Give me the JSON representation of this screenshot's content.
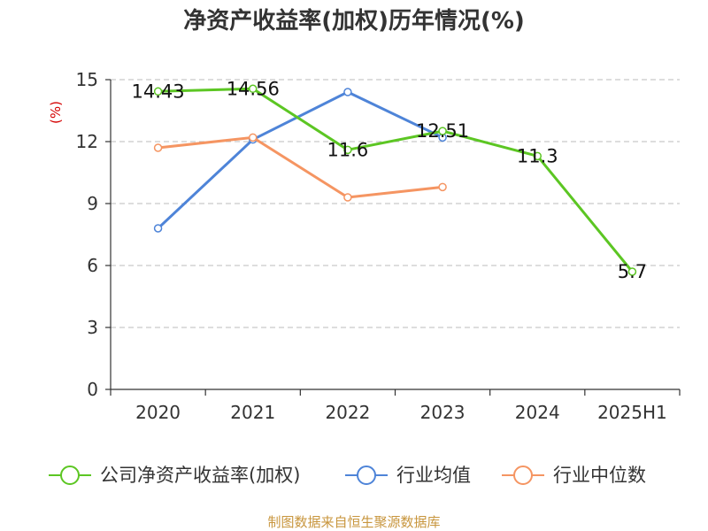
{
  "chart_data": {
    "type": "line",
    "title": "净资产收益率(加权)历年情况(%)",
    "ylabel": "(%)",
    "categories": [
      "2020",
      "2021",
      "2022",
      "2023",
      "2024",
      "2025H1"
    ],
    "ylim": [
      0,
      15
    ],
    "yticks": [
      0,
      3,
      6,
      9,
      12,
      15
    ],
    "grid": true,
    "legend_position": "bottom",
    "series": [
      {
        "name": "公司净资产收益率(加权)",
        "color": "#5cc623",
        "values": [
          14.43,
          14.56,
          11.6,
          12.51,
          11.3,
          5.7
        ],
        "labels": [
          "14.43",
          "14.56",
          "11.6",
          "12.51",
          "11.3",
          "5.7"
        ]
      },
      {
        "name": "行业均值",
        "color": "#4e84d8",
        "values": [
          7.8,
          12.1,
          14.4,
          12.2,
          null,
          null
        ]
      },
      {
        "name": "行业中位数",
        "color": "#f59562",
        "values": [
          11.7,
          12.2,
          9.3,
          9.8,
          null,
          null
        ]
      }
    ]
  },
  "source": "制图数据来自恒生聚源数据库"
}
